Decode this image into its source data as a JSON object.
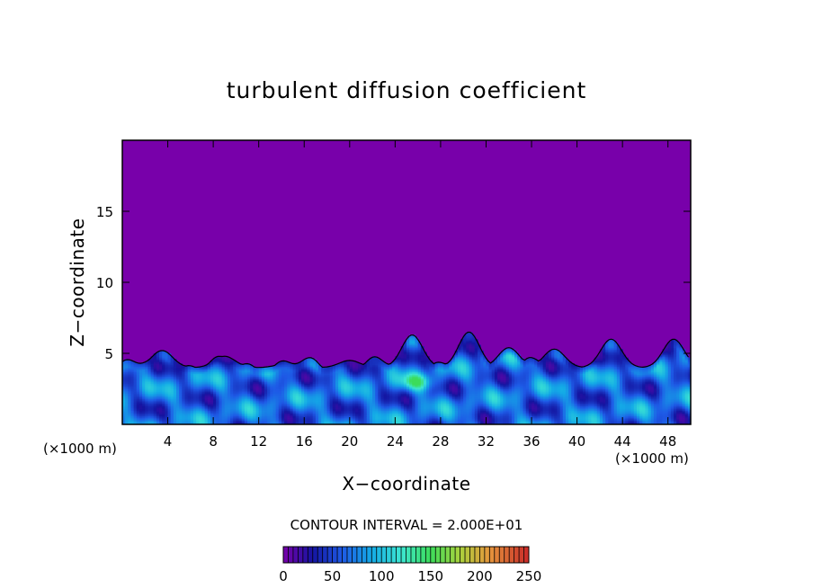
{
  "chart_data": {
    "type": "heatmap",
    "title": "turbulent diffusion coefficient",
    "xlabel": "X−coordinate",
    "ylabel": "Z−coordinate",
    "x_unit": "(×1000 m)",
    "x_ticks": [
      4,
      8,
      12,
      16,
      20,
      24,
      28,
      32,
      36,
      40,
      44,
      48
    ],
    "y_ticks": [
      5,
      10,
      15
    ],
    "xlim": [
      0,
      50
    ],
    "ylim": [
      0,
      20
    ],
    "contour_interval_label": "CONTOUR INTERVAL = 2.000E+01",
    "colorbar": {
      "ticks": [
        0,
        50,
        100,
        150,
        200,
        250
      ],
      "range": [
        0,
        250
      ]
    },
    "background_value": 0,
    "boundary_layer_top_km": 5,
    "turbulent_plumes": [
      {
        "x": 3.5,
        "z_top": 5.2
      },
      {
        "x": 9,
        "z_top": 4.8
      },
      {
        "x": 14.5,
        "z_top": 4.3
      },
      {
        "x": 20,
        "z_top": 4.5
      },
      {
        "x": 25.5,
        "z_top": 6.3
      },
      {
        "x": 30.5,
        "z_top": 6.5
      },
      {
        "x": 34,
        "z_top": 5.4
      },
      {
        "x": 38,
        "z_top": 5.3
      },
      {
        "x": 43,
        "z_top": 6.0
      },
      {
        "x": 48.5,
        "z_top": 6.0
      }
    ],
    "max_value_region": {
      "x": [
        25,
        27
      ],
      "z": [
        2.5,
        3.5
      ],
      "value": 140
    }
  }
}
